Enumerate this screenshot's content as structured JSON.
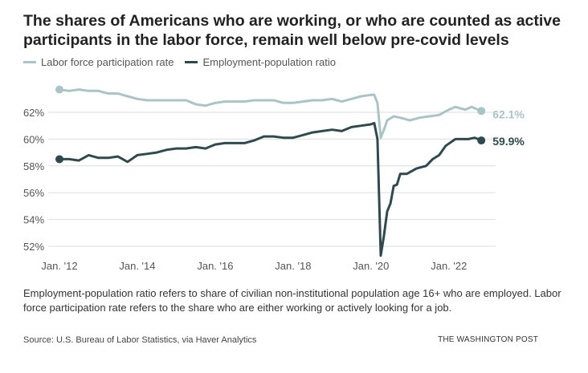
{
  "chart_data": {
    "type": "line",
    "title": "The shares of Americans who are working, or who are counted as active participants in the labor force, remain well below pre-covid levels",
    "xlabel": "",
    "ylabel": "",
    "ylim": [
      51,
      64
    ],
    "yticks": [
      52,
      54,
      56,
      58,
      60,
      62
    ],
    "ytick_labels": [
      "52%",
      "54%",
      "56%",
      "58%",
      "60%",
      "62%"
    ],
    "xticks": [
      "2012-01",
      "2014-01",
      "2016-01",
      "2018-01",
      "2020-01",
      "2022-01"
    ],
    "xtick_labels": [
      "Jan. '12",
      "Jan. '14",
      "Jan. '16",
      "Jan. '18",
      "Jan. '20",
      "Jan. '22"
    ],
    "grid": true,
    "legend_position": "top-left",
    "series": [
      {
        "name": "Labor force participation rate",
        "color": "#a9c4c6",
        "end_label": "62.1%",
        "points": [
          [
            "2012-01",
            63.7
          ],
          [
            "2012-04",
            63.6
          ],
          [
            "2012-07",
            63.7
          ],
          [
            "2012-10",
            63.6
          ],
          [
            "2013-01",
            63.6
          ],
          [
            "2013-04",
            63.4
          ],
          [
            "2013-07",
            63.4
          ],
          [
            "2013-10",
            63.2
          ],
          [
            "2014-01",
            63.0
          ],
          [
            "2014-04",
            62.9
          ],
          [
            "2014-07",
            62.9
          ],
          [
            "2014-10",
            62.9
          ],
          [
            "2015-01",
            62.9
          ],
          [
            "2015-04",
            62.9
          ],
          [
            "2015-07",
            62.6
          ],
          [
            "2015-10",
            62.5
          ],
          [
            "2016-01",
            62.7
          ],
          [
            "2016-04",
            62.8
          ],
          [
            "2016-07",
            62.8
          ],
          [
            "2016-10",
            62.8
          ],
          [
            "2017-01",
            62.9
          ],
          [
            "2017-04",
            62.9
          ],
          [
            "2017-07",
            62.9
          ],
          [
            "2017-10",
            62.7
          ],
          [
            "2018-01",
            62.7
          ],
          [
            "2018-04",
            62.8
          ],
          [
            "2018-07",
            62.9
          ],
          [
            "2018-10",
            62.9
          ],
          [
            "2019-01",
            63.0
          ],
          [
            "2019-04",
            62.8
          ],
          [
            "2019-07",
            63.0
          ],
          [
            "2019-10",
            63.2
          ],
          [
            "2020-01",
            63.3
          ],
          [
            "2020-02",
            63.3
          ],
          [
            "2020-03",
            62.7
          ],
          [
            "2020-04",
            60.1
          ],
          [
            "2020-05",
            60.7
          ],
          [
            "2020-06",
            61.4
          ],
          [
            "2020-08",
            61.7
          ],
          [
            "2020-10",
            61.6
          ],
          [
            "2021-01",
            61.4
          ],
          [
            "2021-04",
            61.6
          ],
          [
            "2021-07",
            61.7
          ],
          [
            "2021-10",
            61.8
          ],
          [
            "2022-01",
            62.2
          ],
          [
            "2022-03",
            62.4
          ],
          [
            "2022-06",
            62.2
          ],
          [
            "2022-08",
            62.4
          ],
          [
            "2022-10",
            62.2
          ],
          [
            "2022-11",
            62.1
          ]
        ]
      },
      {
        "name": "Employment-population ratio",
        "color": "#2e4a4e",
        "end_label": "59.9%",
        "points": [
          [
            "2012-01",
            58.5
          ],
          [
            "2012-04",
            58.5
          ],
          [
            "2012-07",
            58.4
          ],
          [
            "2012-10",
            58.8
          ],
          [
            "2013-01",
            58.6
          ],
          [
            "2013-04",
            58.6
          ],
          [
            "2013-07",
            58.7
          ],
          [
            "2013-10",
            58.3
          ],
          [
            "2014-01",
            58.8
          ],
          [
            "2014-04",
            58.9
          ],
          [
            "2014-07",
            59.0
          ],
          [
            "2014-10",
            59.2
          ],
          [
            "2015-01",
            59.3
          ],
          [
            "2015-04",
            59.3
          ],
          [
            "2015-07",
            59.4
          ],
          [
            "2015-10",
            59.3
          ],
          [
            "2016-01",
            59.6
          ],
          [
            "2016-04",
            59.7
          ],
          [
            "2016-07",
            59.7
          ],
          [
            "2016-10",
            59.7
          ],
          [
            "2017-01",
            59.9
          ],
          [
            "2017-04",
            60.2
          ],
          [
            "2017-07",
            60.2
          ],
          [
            "2017-10",
            60.1
          ],
          [
            "2018-01",
            60.1
          ],
          [
            "2018-04",
            60.3
          ],
          [
            "2018-07",
            60.5
          ],
          [
            "2018-10",
            60.6
          ],
          [
            "2019-01",
            60.7
          ],
          [
            "2019-04",
            60.6
          ],
          [
            "2019-07",
            60.9
          ],
          [
            "2019-10",
            61.0
          ],
          [
            "2020-01",
            61.1
          ],
          [
            "2020-02",
            61.2
          ],
          [
            "2020-03",
            60.0
          ],
          [
            "2020-04",
            51.3
          ],
          [
            "2020-05",
            52.8
          ],
          [
            "2020-06",
            54.6
          ],
          [
            "2020-07",
            55.2
          ],
          [
            "2020-08",
            56.5
          ],
          [
            "2020-09",
            56.6
          ],
          [
            "2020-10",
            57.4
          ],
          [
            "2020-12",
            57.4
          ],
          [
            "2021-03",
            57.8
          ],
          [
            "2021-06",
            58.0
          ],
          [
            "2021-08",
            58.5
          ],
          [
            "2021-10",
            58.8
          ],
          [
            "2021-12",
            59.5
          ],
          [
            "2022-03",
            60.0
          ],
          [
            "2022-05",
            60.0
          ],
          [
            "2022-07",
            60.0
          ],
          [
            "2022-09",
            60.1
          ],
          [
            "2022-11",
            59.9
          ]
        ]
      }
    ]
  },
  "note": "Employment-population ratio refers to share of civilian non-institutional population age 16+ who are employed. Labor force participation rate refers to the share who are either working or actively looking for a job.",
  "source": "Source: U.S. Bureau of Labor Statistics, via Haver Analytics",
  "credit": "THE WASHINGTON POST"
}
